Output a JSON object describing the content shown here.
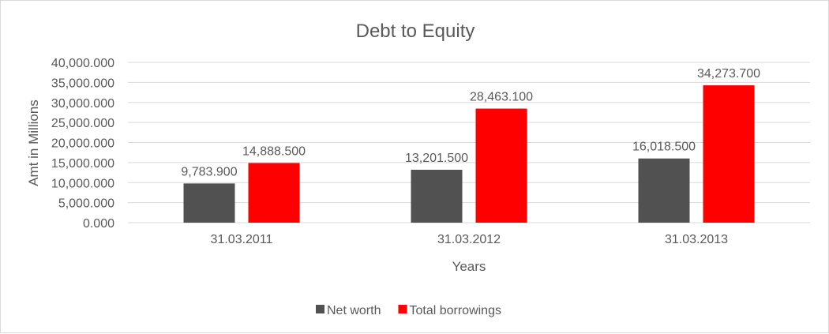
{
  "chart_data": {
    "type": "bar",
    "title": "Debt to Equity",
    "xlabel": "Years",
    "ylabel": "Amt in Millions",
    "categories": [
      "31.03.2011",
      "31.03.2012",
      "31.03.2013"
    ],
    "ylim": [
      0,
      40000000
    ],
    "yticks": [
      0,
      5000000,
      10000000,
      15000000,
      20000000,
      25000000,
      30000000,
      35000000,
      40000000
    ],
    "ytick_labels": [
      "0.000",
      "5,000.000",
      "10,000.000",
      "15,000.000",
      "20,000.000",
      "25,000.000",
      "30,000.000",
      "35,000.000",
      "40,000.000"
    ],
    "grid": true,
    "legend_position": "bottom",
    "series": [
      {
        "name": "Net worth",
        "color": "#515151",
        "values": [
          9783900,
          13201500,
          16018500
        ],
        "labels": [
          "9,783.900",
          "13,201.500",
          "16,018.500"
        ]
      },
      {
        "name": "Total borrowings",
        "color": "#ff0000",
        "values": [
          14888500,
          28463100,
          34273700
        ],
        "labels": [
          "14,888.500",
          "28,463.100",
          "34,273.700"
        ]
      }
    ]
  }
}
